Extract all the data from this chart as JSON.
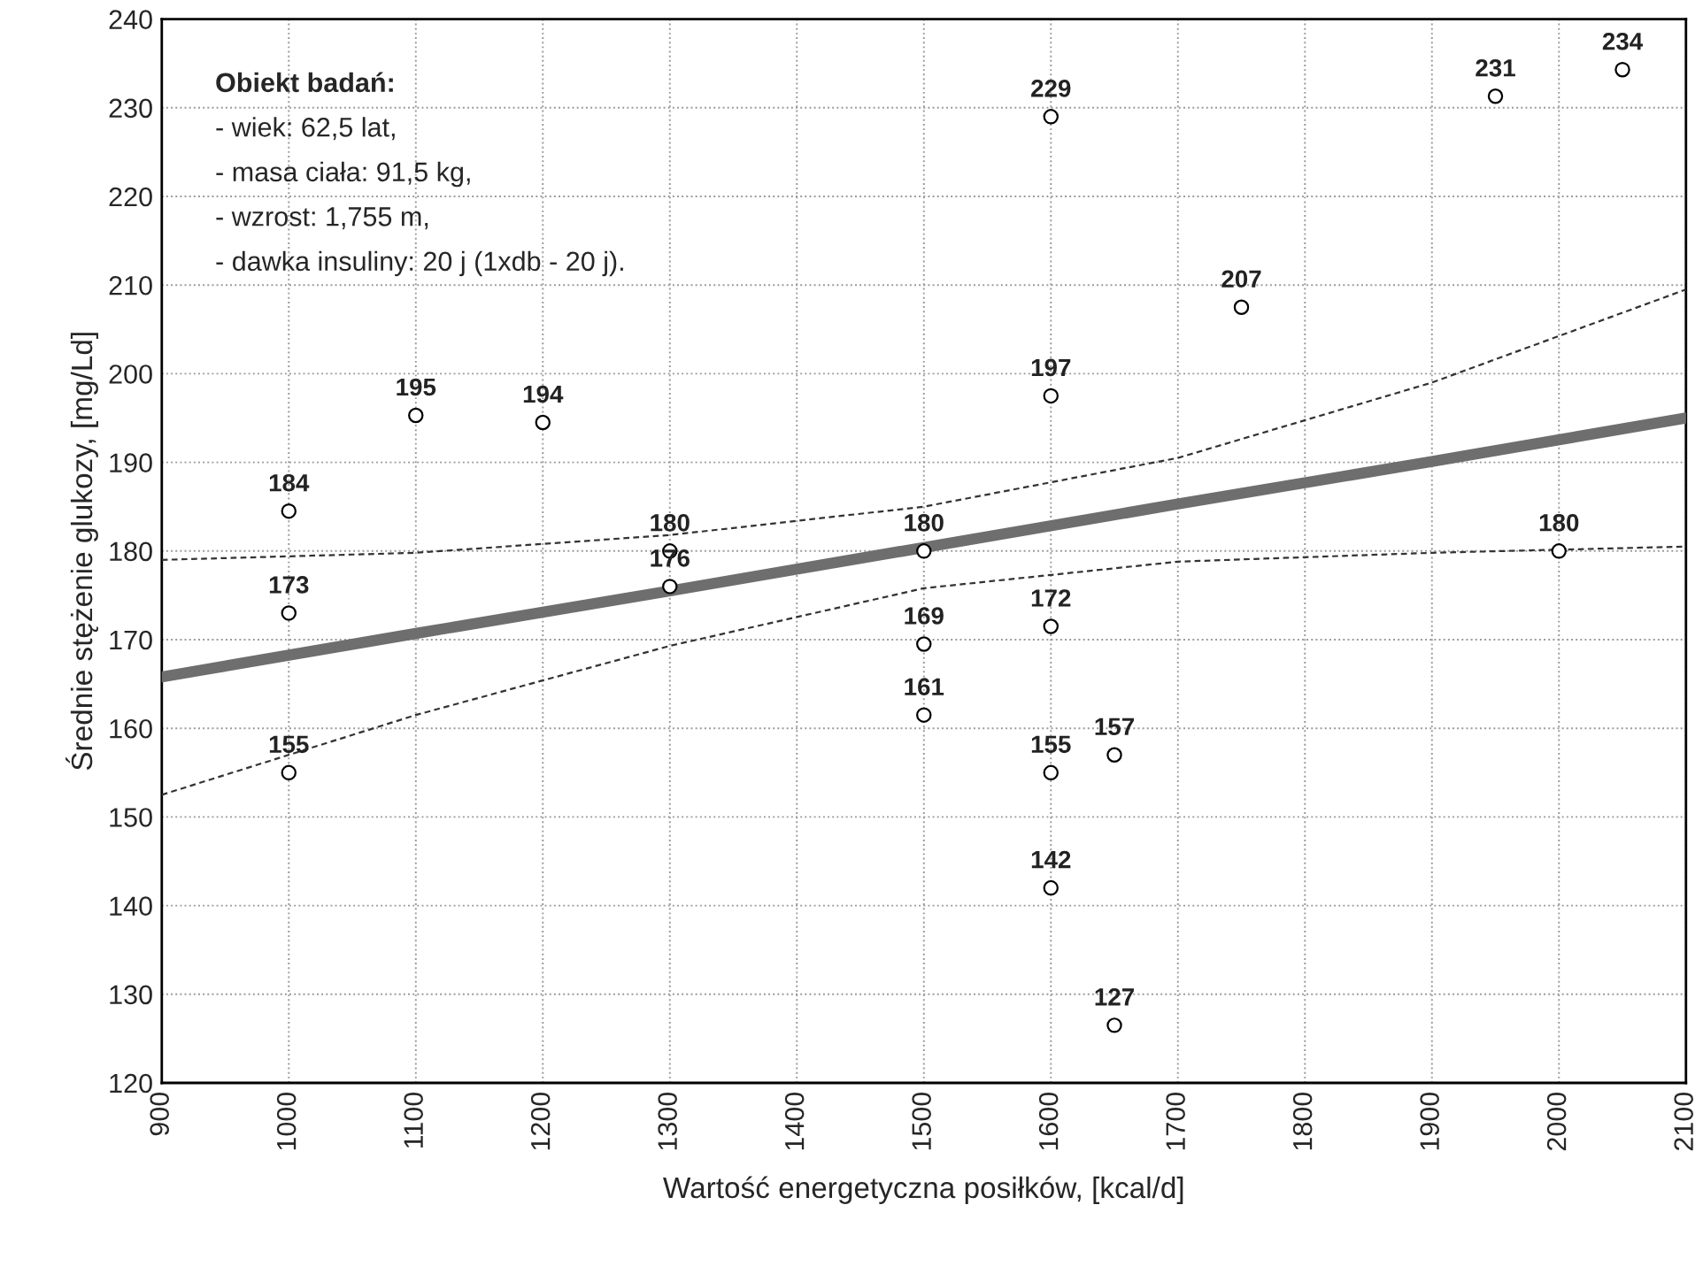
{
  "chart_data": {
    "type": "scatter",
    "xlabel": "Wartość energetyczna posiłków, [kcal/d]",
    "ylabel": "Średnie stężenie glukozy, [mg/Ld]",
    "xlim": [
      900,
      2100
    ],
    "xticks": [
      900,
      1000,
      1100,
      1200,
      1300,
      1400,
      1500,
      1600,
      1700,
      1800,
      1900,
      2000,
      2100
    ],
    "ylim": [
      120,
      240
    ],
    "yticks": [
      120,
      130,
      140,
      150,
      160,
      170,
      180,
      190,
      200,
      210,
      220,
      230,
      240
    ],
    "grid": true,
    "annotations": [
      "Obiekt badań:",
      "- wiek: 62,5 lat,",
      "- masa ciała: 91,5 kg,",
      "- wzrost: 1,755 m,",
      "- dawka insuliny: 20 j (1xdb - 20 j)."
    ],
    "series": [
      {
        "color": "#000000",
        "marker": "circle",
        "x": [
          1000,
          1000,
          1000,
          1100,
          1200,
          1300,
          1300,
          1500,
          1500,
          1500,
          1600,
          1600,
          1600,
          1600,
          1600,
          1650,
          1650,
          1750,
          1950,
          2000,
          2050
        ],
        "values": [
          184.5,
          173,
          155,
          195.3,
          194.5,
          180,
          176,
          180,
          169.5,
          161.5,
          229,
          197.5,
          171.5,
          155,
          142,
          157,
          126.5,
          207.5,
          231.3,
          180,
          234.3
        ],
        "value_labels": [
          "184",
          "173",
          "155",
          "195",
          "194",
          "180",
          "176",
          "180",
          "169",
          "161",
          "229",
          "197",
          "172",
          "155",
          "142",
          "157",
          "127",
          "207",
          "231",
          "180",
          "234"
        ]
      },
      {
        "type": "line",
        "color": "#6e6e6e",
        "line_style": "solid",
        "marker": "none",
        "x": [
          900,
          1100,
          1300,
          1500,
          1700,
          1900,
          2100
        ],
        "values": [
          165.8,
          170.7,
          175.5,
          180.4,
          185.3,
          190.1,
          195.0
        ]
      },
      {
        "type": "line",
        "color": "#333333",
        "line_style": "dashed",
        "marker": "none",
        "x": [
          900,
          1100,
          1300,
          1500,
          1700,
          1900,
          2100
        ],
        "values": [
          152.5,
          161.5,
          169.3,
          175.8,
          178.8,
          179.8,
          180.5
        ]
      },
      {
        "type": "line",
        "color": "#333333",
        "line_style": "dashed",
        "marker": "none",
        "x": [
          900,
          1100,
          1300,
          1500,
          1700,
          1900,
          2100
        ],
        "values": [
          179,
          179.8,
          181.8,
          185,
          190.5,
          199,
          209.5
        ]
      }
    ]
  }
}
